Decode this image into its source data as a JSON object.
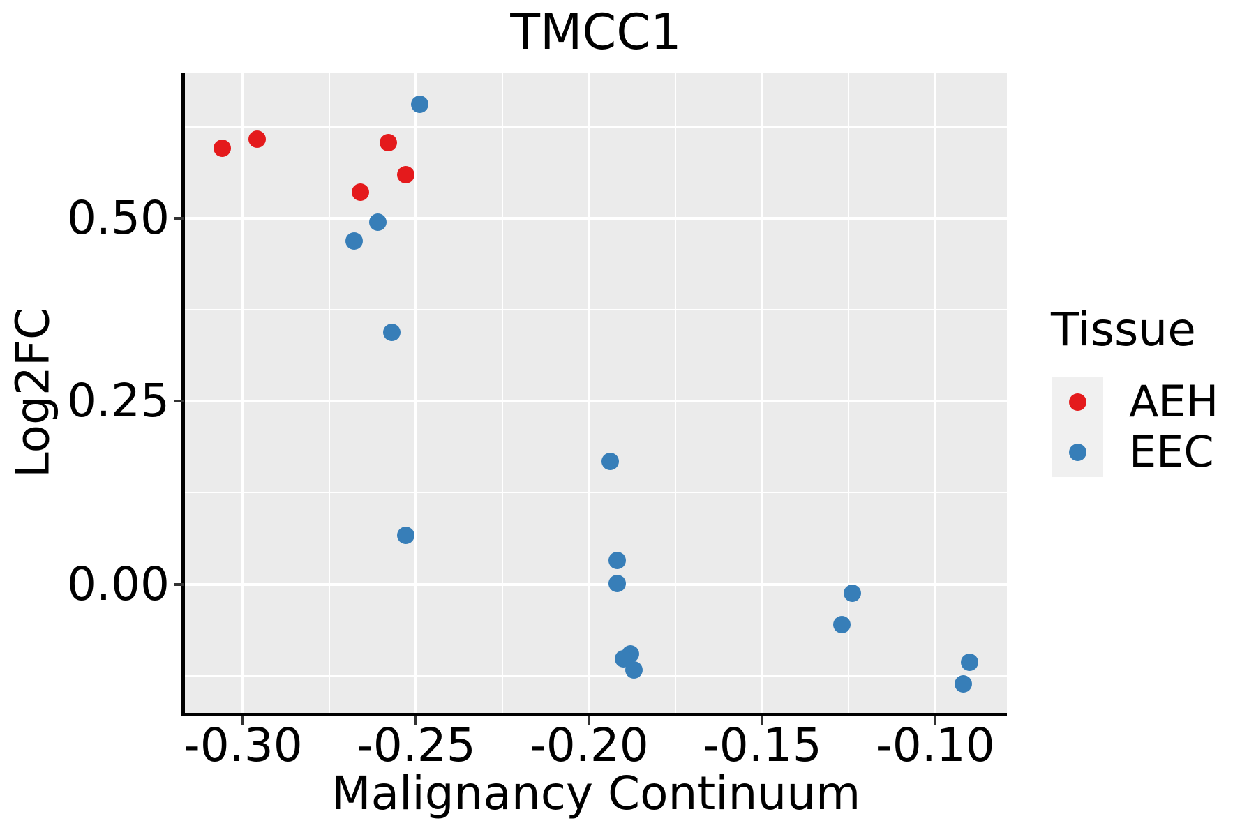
{
  "title": "TMCC1",
  "axes": {
    "x": {
      "label": "Malignancy Continuum",
      "tick_labels": [
        "-0.30",
        "-0.25",
        "-0.20",
        "-0.15",
        "-0.10"
      ],
      "tick_values": [
        -0.3,
        -0.25,
        -0.2,
        -0.15,
        -0.1
      ],
      "minor_values": [
        -0.275,
        -0.225,
        -0.175,
        -0.125
      ]
    },
    "y": {
      "label": "Log2FC",
      "tick_labels": [
        "0.50",
        "0.25",
        "0.00"
      ],
      "tick_values": [
        0.5,
        0.25,
        0.0
      ],
      "minor_values": [
        0.625,
        0.375,
        0.125,
        -0.125
      ]
    }
  },
  "legend": {
    "title": "Tissue",
    "items": [
      {
        "label": "AEH",
        "color": "#E41A1C"
      },
      {
        "label": "EEC",
        "color": "#377EB8"
      }
    ]
  },
  "chart_data": {
    "type": "scatter",
    "title": "TMCC1",
    "xlabel": "Malignancy Continuum",
    "ylabel": "Log2FC",
    "xlim": [
      -0.3168,
      -0.0793
    ],
    "ylim": [
      -0.1756,
      0.699
    ],
    "grid": "major+minor",
    "legend_position": "right",
    "series": [
      {
        "name": "AEH",
        "color": "#E41A1C",
        "points": [
          [
            -0.306,
            0.596
          ],
          [
            -0.296,
            0.608
          ],
          [
            -0.258,
            0.603
          ],
          [
            -0.253,
            0.559
          ],
          [
            -0.266,
            0.536
          ]
        ]
      },
      {
        "name": "EEC",
        "color": "#377EB8",
        "points": [
          [
            -0.249,
            0.656
          ],
          [
            -0.261,
            0.495
          ],
          [
            -0.268,
            0.469
          ],
          [
            -0.257,
            0.344
          ],
          [
            -0.253,
            0.067
          ],
          [
            -0.194,
            0.168
          ],
          [
            -0.192,
            0.033
          ],
          [
            -0.192,
            0.001
          ],
          [
            -0.188,
            -0.095
          ],
          [
            -0.19,
            -0.102
          ],
          [
            -0.187,
            -0.117
          ],
          [
            -0.124,
            -0.012
          ],
          [
            -0.127,
            -0.055
          ],
          [
            -0.09,
            -0.107
          ],
          [
            -0.092,
            -0.136
          ]
        ]
      }
    ]
  },
  "colors": {
    "panel_bg": "#EBEBEB",
    "grid": "#FFFFFF",
    "axis_line": "#000000",
    "tick": "#333333",
    "text": "#000000",
    "legend_key_bg": "#F0F0F0",
    "aeh": "#E41A1C",
    "eec": "#377EB8"
  }
}
